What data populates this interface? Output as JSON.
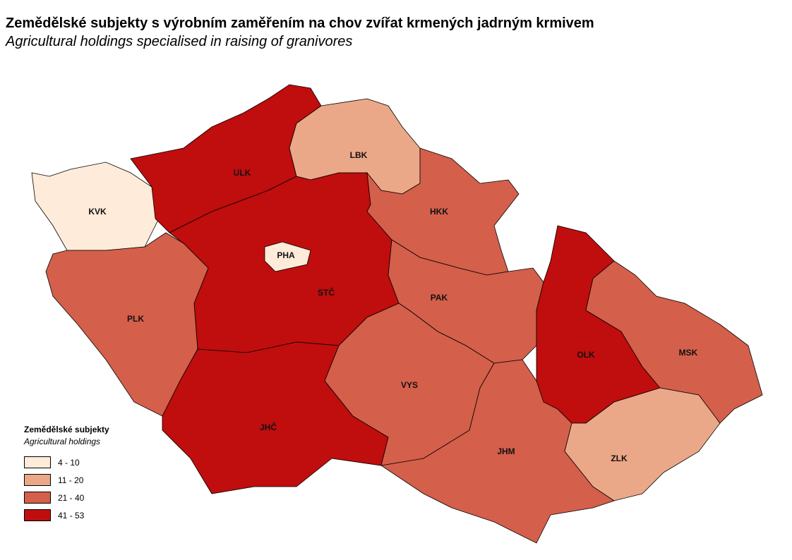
{
  "title": "Zemědělské subjekty s výrobním zaměřením na chov zvířat krmených jadrným krmivem",
  "subtitle": "Agricultural holdings specialised in raising of granivores",
  "legend": {
    "title": "Zemědělské subjekty",
    "subtitle": "Agricultural holdings",
    "classes": [
      {
        "label": "4 - 10",
        "color": "#FEEBD9"
      },
      {
        "label": "11 - 20",
        "color": "#EBA888"
      },
      {
        "label": "21 - 40",
        "color": "#D45F4B"
      },
      {
        "label": "41 - 53",
        "color": "#C00D0D"
      }
    ]
  },
  "regions": [
    {
      "code": "KVK",
      "class": 0
    },
    {
      "code": "ULK",
      "class": 3
    },
    {
      "code": "LBK",
      "class": 1
    },
    {
      "code": "STČ",
      "class": 3
    },
    {
      "code": "PHA",
      "class": 0
    },
    {
      "code": "PLK",
      "class": 2
    },
    {
      "code": "JHČ",
      "class": 3
    },
    {
      "code": "HKK",
      "class": 2
    },
    {
      "code": "PAK",
      "class": 2
    },
    {
      "code": "VYS",
      "class": 2
    },
    {
      "code": "JHM",
      "class": 2
    },
    {
      "code": "OLK",
      "class": 3
    },
    {
      "code": "MSK",
      "class": 2
    },
    {
      "code": "ZLK",
      "class": 1
    }
  ]
}
